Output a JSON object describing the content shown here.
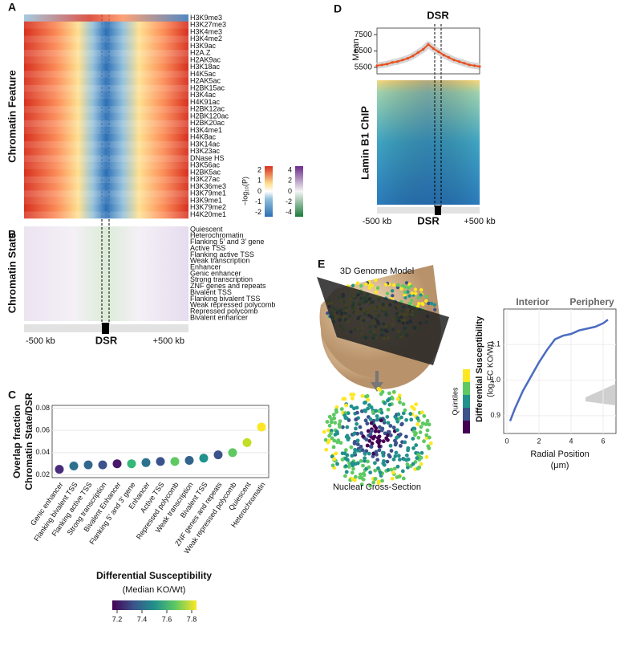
{
  "chart_data": [
    {
      "type": "heatmap",
      "panel": "A",
      "ylabel": "Chromatin Feature",
      "rows": [
        "H3K9me3",
        "H3K27me3",
        "H3K4me3",
        "H3K4me2",
        "H3K9ac",
        "H2A.Z",
        "H2AK9ac",
        "H3K18ac",
        "H4K5ac",
        "H2AK5ac",
        "H2BK15ac",
        "H3K4ac",
        "H4K91ac",
        "H2BK12ac",
        "H2BK120ac",
        "H2BK20ac",
        "H3K4me1",
        "H4K8ac",
        "H3K14ac",
        "H3K23ac",
        "DNase HS",
        "H3K56ac",
        "H2BK5ac",
        "H3K27ac",
        "H3K36me3",
        "H3K79me1",
        "H3K9me1",
        "H3K79me2",
        "H4K20me1"
      ],
      "row_colors": [
        "#c62828",
        "#111111",
        "#2a7a3a",
        "#2a7a3a",
        "#2a7a3a",
        "#2a7a3a",
        "#2a7a3a",
        "#2a7a3a",
        "#2a7a3a",
        "#2a7a3a",
        "#2a7a3a",
        "#2a7a3a",
        "#2a7a3a",
        "#2a7a3a",
        "#2a7a3a",
        "#2a7a3a",
        "#2a7a3a",
        "#2a7a3a",
        "#2a7a3a",
        "#2a7a3a",
        "#2a7a3a",
        "#2a7a3a",
        "#2a7a3a",
        "#2a7a3a",
        "#2a7a3a",
        "#2a7a3a",
        "#2a7a3a",
        "#2a7a3a",
        "#2a7a3a"
      ],
      "colorbar_label": "−log₁₀(P)",
      "colorbar_ticks": [
        [
          2,
          1,
          0,
          -1,
          -2
        ],
        [
          4,
          2,
          0,
          -2,
          -4
        ]
      ]
    },
    {
      "type": "heatmap",
      "panel": "B",
      "ylabel": "Chromatin State",
      "rows": [
        "Quiescent",
        "Heterochromatin",
        "Flanking 5’ and 3’ gene",
        "Active TSS",
        "Flanking active TSS",
        "Weak transcription",
        "Enhancer",
        "Genic enhancer",
        "Strong transcription",
        "ZNF genes and repeats",
        "Bivalent TSS",
        "Flanking bivalent TSS",
        "Weak repressed polycomb",
        "Repressed polycomb",
        "Bivalent enhancer"
      ],
      "row_colors": [
        "#c62828",
        "#c62828",
        "#2a7a3a",
        "#2a7a3a",
        "#2a7a3a",
        "#2a7a3a",
        "#2a7a3a",
        "#2a7a3a",
        "#2a7a3a",
        "#111111",
        "#111111",
        "#111111",
        "#111111",
        "#111111",
        "#111111"
      ],
      "xlim": [
        -500,
        500
      ],
      "xticks": [
        {
          "value": -500,
          "label": "-500 kb"
        },
        {
          "value": 0,
          "label": "DSR"
        },
        {
          "value": 500,
          "label": "+500 kb"
        }
      ]
    },
    {
      "type": "scatter",
      "panel": "C",
      "ylabel": [
        "Overlap fraction",
        "Chromatin State/DSR"
      ],
      "categories": [
        "Genic enhancer",
        "Flanking bivalent TSS",
        "Flanking active TSS",
        "Strong transcription",
        "Bivalent Enhancer",
        "Flanking 5’ and 3’ gene",
        "Enhancer",
        "Active TSS",
        "Repressed polycomb",
        "Weak transcription",
        "Bivalent TSS",
        "ZNF genes and repeats",
        "Weak repressed polycomb",
        "Quiescent",
        "Heterochromatin"
      ],
      "category_colors": [
        "#2a7a3a",
        "#111111",
        "#2a7a3a",
        "#2a7a3a",
        "#111111",
        "#2a7a3a",
        "#2a7a3a",
        "#2a7a3a",
        "#c62828",
        "#2a7a3a",
        "#111111",
        "#111111",
        "#c62828",
        "#c62828",
        "#c62828"
      ],
      "values": [
        0.025,
        0.028,
        0.029,
        0.029,
        0.03,
        0.03,
        0.031,
        0.032,
        0.032,
        0.033,
        0.035,
        0.038,
        0.04,
        0.049,
        0.063
      ],
      "point_colors": [
        "#472d7b",
        "#2c728e",
        "#31688e",
        "#3b528b",
        "#48186a",
        "#35b779",
        "#2c728e",
        "#3b528b",
        "#5ec962",
        "#33638d",
        "#21918c",
        "#3b528b",
        "#5ec962",
        "#c2df23",
        "#fde725"
      ],
      "ylim": [
        0.0175,
        0.0825
      ],
      "yticks": [
        0.02,
        0.04,
        0.06,
        0.08
      ],
      "grid": true,
      "colorbar": {
        "title": "Differential Susceptibility",
        "subtitle": "(Median KO/Wt)",
        "ticks": [
          7.2,
          7.4,
          7.6,
          7.8
        ]
      }
    },
    {
      "type": "line",
      "panel": "D",
      "title": "DSR",
      "ylabel": "Mean",
      "heatmap_label": "Lamin B1 ChIP",
      "color": "#e8501e",
      "x": [
        -500,
        -450,
        -400,
        -350,
        -300,
        -250,
        -200,
        -150,
        -100,
        -50,
        0,
        50,
        100,
        150,
        200,
        250,
        300,
        350,
        400,
        450,
        500
      ],
      "values": [
        5600,
        5650,
        5700,
        5800,
        5850,
        5950,
        6050,
        6200,
        6400,
        6600,
        6900,
        6650,
        6450,
        6250,
        6100,
        5950,
        5850,
        5750,
        5650,
        5600,
        5550
      ],
      "xlim": [
        -500,
        500
      ],
      "ylim": [
        5100,
        7900
      ],
      "yticks": [
        5500,
        6500,
        7500
      ],
      "xticks": [
        {
          "value": -500,
          "label": "-500 kb"
        },
        {
          "value": 0,
          "label": "DSR"
        },
        {
          "value": 500,
          "label": "+500 kb"
        }
      ]
    },
    {
      "type": "line",
      "panel": "E",
      "image_labels": [
        "3D Genome Model",
        "Nuclear Cross-Section"
      ],
      "colorbar_label": "Quintiles",
      "annotations": [
        "Interior",
        "Periphery"
      ],
      "ylabel": [
        "Differential Susceptibility",
        "(log₂FC KO/Wt)"
      ],
      "xlabel": [
        "Radial Position",
        "(μm)"
      ],
      "color": "#4a6cc0",
      "x": [
        0.2,
        0.5,
        1,
        1.5,
        2,
        2.5,
        3,
        3.5,
        4,
        4.5,
        5,
        5.5,
        6,
        6.3
      ],
      "values": [
        0.885,
        0.92,
        0.97,
        1.01,
        1.05,
        1.085,
        1.115,
        1.125,
        1.13,
        1.14,
        1.145,
        1.15,
        1.16,
        1.17
      ],
      "xlim": [
        -0.2,
        6.8
      ],
      "ylim": [
        0.85,
        1.2
      ],
      "xticks": [
        0,
        2,
        4,
        6
      ],
      "yticks": [
        0.9,
        {
          "value": 1,
          "label": "1.0"
        },
        1.1
      ],
      "grid": true
    }
  ]
}
